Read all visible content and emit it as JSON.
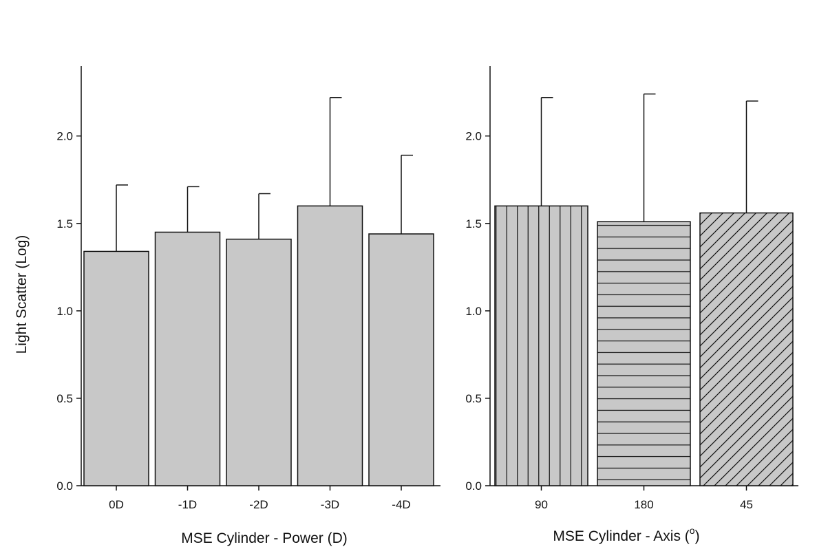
{
  "chart_data": [
    {
      "type": "bar",
      "ylabel": "Light Scatter (Log)",
      "xlabel": "MSE Cylinder - Power (D)",
      "categories": [
        "0D",
        "-1D",
        "-2D",
        "-3D",
        "-4D"
      ],
      "values": [
        1.34,
        1.45,
        1.41,
        1.6,
        1.44
      ],
      "error_upper": [
        1.72,
        1.71,
        1.67,
        2.22,
        1.89
      ],
      "ylim": [
        0,
        2.4
      ],
      "yticks": [
        "0.0",
        "0.5",
        "1.0",
        "1.5",
        "2.0"
      ],
      "bar_color": "#c8c8c8",
      "fill_patterns": [
        "solid",
        "solid",
        "solid",
        "solid",
        "solid"
      ],
      "grid": false,
      "legend": "none"
    },
    {
      "type": "bar",
      "ylabel": "",
      "xlabel_main": "MSE Cylinder - Axis (",
      "xlabel_sup": "o",
      "xlabel_end": ")",
      "categories": [
        "90",
        "180",
        "45"
      ],
      "values": [
        1.6,
        1.51,
        1.56
      ],
      "error_upper": [
        2.22,
        2.24,
        2.2
      ],
      "ylim": [
        0,
        2.4
      ],
      "yticks": [
        "0.0",
        "0.5",
        "1.0",
        "1.5",
        "2.0"
      ],
      "bar_color": "#c8c8c8",
      "fill_patterns": [
        "vertical-lines",
        "horizontal-lines",
        "diagonal-lines"
      ],
      "grid": false,
      "legend": "none"
    }
  ]
}
